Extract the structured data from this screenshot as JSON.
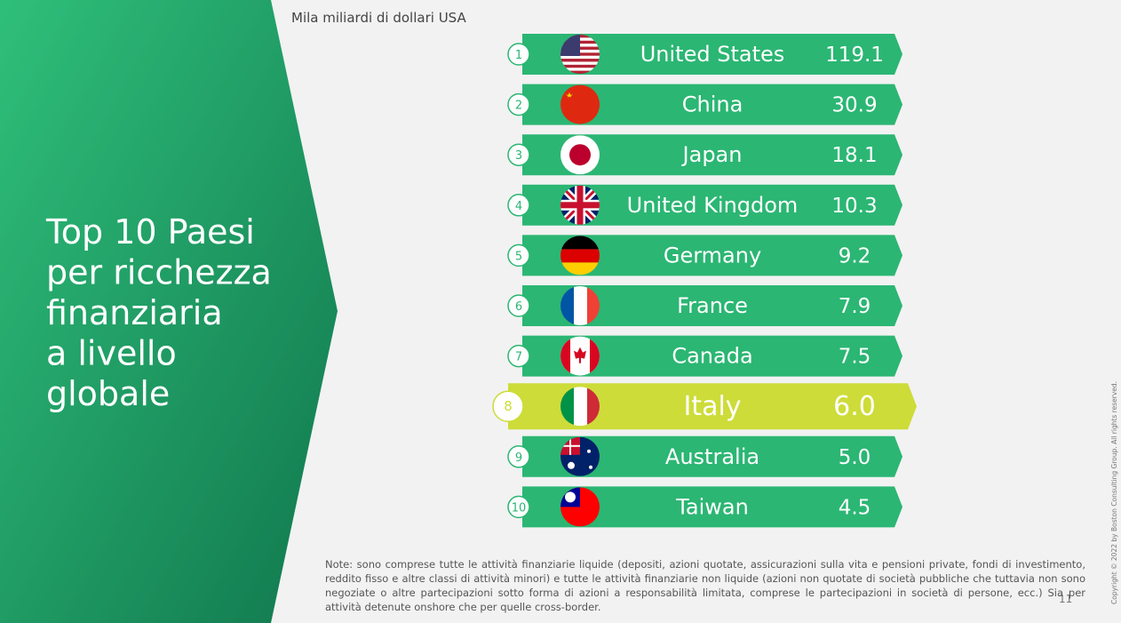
{
  "header": {
    "title_lines": [
      "Top 10 Paesi",
      "per ricchezza",
      "finanziaria",
      "a livello",
      "globale"
    ],
    "unit": "Mila miliardi di dollari USA"
  },
  "ranking": {
    "rows": [
      {
        "rank": "1",
        "country": "United States",
        "value": "119.1"
      },
      {
        "rank": "2",
        "country": "China",
        "value": "30.9"
      },
      {
        "rank": "3",
        "country": "Japan",
        "value": "18.1"
      },
      {
        "rank": "4",
        "country": "United Kingdom",
        "value": "10.3"
      },
      {
        "rank": "5",
        "country": "Germany",
        "value": "9.2"
      },
      {
        "rank": "6",
        "country": "France",
        "value": "7.9"
      },
      {
        "rank": "7",
        "country": "Canada",
        "value": "7.5"
      },
      {
        "rank": "8",
        "country": "Italy",
        "value": "6.0"
      },
      {
        "rank": "9",
        "country": "Australia",
        "value": "5.0"
      },
      {
        "rank": "10",
        "country": "Taiwan",
        "value": "4.5"
      }
    ]
  },
  "footer": {
    "note": "Note: sono comprese tutte le attività finanziarie liquide (depositi, azioni quotate, assicurazioni sulla vita e pensioni private, fondi di investimento, reddito fisso e altre classi di attività minori) e tutte le attività finanziarie non liquide (azioni non quotate di società pubbliche che tuttavia non sono negoziate o altre partecipazioni sotto forma di azioni a responsabilità limitata, comprese le partecipazioni in società di persone, ecc.) Sia per attività detenute onshore che per quelle cross-border.",
    "page": "11",
    "copyright": "Copyright © 2022 by Boston Consulting Group. All rights reserved."
  }
}
